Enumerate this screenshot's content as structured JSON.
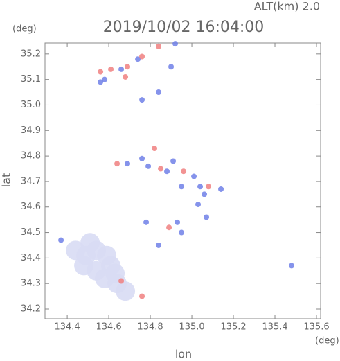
{
  "chart_data": {
    "type": "scatter",
    "title": "2019/10/02 16:04:00",
    "subtitle": "ALT(km) 2.0",
    "x_label": "lon",
    "x_unit": "(deg)",
    "y_label": "lat",
    "y_unit": "(deg)",
    "xlim": [
      134.293,
      135.62
    ],
    "ylim": [
      34.162,
      35.243
    ],
    "xticks": [
      134.4,
      134.6,
      134.8,
      {
        "value": 135,
        "label": "135.0"
      },
      135.2,
      135.4,
      135.6
    ],
    "yticks": [
      34.2,
      34.3,
      34.4,
      34.5,
      34.6,
      34.7,
      34.8,
      34.9,
      {
        "value": 35,
        "label": "35.0"
      },
      35.1,
      35.2
    ],
    "x": [
      134.44,
      134.49,
      134.54,
      134.59,
      134.48,
      134.54,
      134.61,
      134.58,
      134.64,
      134.68,
      134.63,
      134.51,
      134.56,
      134.58,
      134.61,
      134.66,
      134.69,
      134.74,
      134.76,
      134.84,
      134.92,
      134.56,
      134.68,
      134.84,
      134.76,
      134.9,
      134.64,
      134.69,
      134.76,
      134.79,
      134.82,
      134.85,
      134.88,
      134.91,
      134.96,
      134.95,
      135.01,
      135.04,
      135.08,
      135.03,
      135.06,
      135.14,
      134.89,
      134.93,
      134.95,
      134.78,
      134.84,
      135.07,
      134.37,
      135.48,
      134.66,
      134.76
    ],
    "y": [
      34.43,
      34.41,
      34.43,
      34.41,
      34.37,
      34.35,
      34.37,
      34.32,
      34.3,
      34.27,
      34.34,
      34.46,
      35.13,
      35.1,
      35.14,
      35.14,
      35.15,
      35.18,
      35.19,
      35.23,
      35.24,
      35.09,
      35.11,
      35.05,
      35.02,
      35.15,
      34.77,
      34.77,
      34.79,
      34.76,
      34.83,
      34.75,
      34.74,
      34.78,
      34.74,
      34.68,
      34.72,
      34.68,
      34.68,
      34.61,
      34.65,
      34.67,
      34.52,
      34.54,
      34.5,
      34.54,
      34.45,
      34.56,
      34.47,
      34.37,
      34.31,
      34.25
    ],
    "colors": [
      "#d8dcf4",
      "#d8dcf4",
      "#d8dcf4",
      "#d8dcf4",
      "#d8dcf4",
      "#d8dcf4",
      "#d8dcf4",
      "#d8dcf4",
      "#d8dcf4",
      "#d8dcf4",
      "#d8dcf4",
      "#d8dcf4",
      "#f08080",
      "#7080e8",
      "#f08080",
      "#7080e8",
      "#f08080",
      "#7080e8",
      "#f08080",
      "#f08080",
      "#7080e8",
      "#7080e8",
      "#f08080",
      "#7080e8",
      "#7080e8",
      "#7080e8",
      "#f08080",
      "#7080e8",
      "#7080e8",
      "#7080e8",
      "#f08080",
      "#f08080",
      "#7080e8",
      "#7080e8",
      "#f08080",
      "#7080e8",
      "#7080e8",
      "#7080e8",
      "#f08080",
      "#7080e8",
      "#7080e8",
      "#7080e8",
      "#f08080",
      "#7080e8",
      "#7080e8",
      "#7080e8",
      "#7080e8",
      "#7080e8",
      "#7080e8",
      "#7080e8",
      "#f08080",
      "#f08080"
    ]
  }
}
